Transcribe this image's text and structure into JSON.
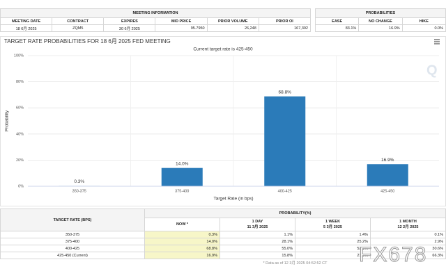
{
  "meeting_info": {
    "title": "MEETING INFORMATION",
    "columns": [
      "MEETING DATE",
      "CONTRACT",
      "EXPIRES",
      "MID PRICE",
      "PRIOR VOLUME",
      "PRIOR OI"
    ],
    "row": [
      "18 6月 2025",
      "ZQM5",
      "30 6月 2025",
      "95.7950",
      "26,248",
      "167,392"
    ]
  },
  "probabilities": {
    "title": "PROBABILITIES",
    "columns": [
      "EASE",
      "NO CHANGE",
      "HIKE"
    ],
    "row": [
      "83.1%",
      "16.9%",
      "0.0%"
    ]
  },
  "chart_data": {
    "type": "bar",
    "title": "TARGET RATE PROBABILITIES FOR 18 6月 2025 FED MEETING",
    "subtitle": "Current target rate is 425-450",
    "x_label": "Target Rate (in bps)",
    "y_label": "Probability",
    "categories": [
      "350-375",
      "375-400",
      "400-425",
      "425-450"
    ],
    "values": [
      0.3,
      14.0,
      68.8,
      16.9
    ],
    "value_labels": [
      "0.3%",
      "14.0%",
      "68.8%",
      "16.9%"
    ],
    "color": "#2b7bb9",
    "ylim": [
      0,
      100
    ],
    "yticks": [
      {
        "value": 0,
        "label": "0%"
      },
      {
        "value": 20,
        "label": "20%"
      },
      {
        "value": 40,
        "label": "40%"
      },
      {
        "value": 60,
        "label": "60%"
      },
      {
        "value": 80,
        "label": "80%"
      },
      {
        "value": 100,
        "label": "100%"
      }
    ],
    "grid": true
  },
  "history_table": {
    "rate_header": "TARGET RATE (BPS)",
    "prob_header": "PROBABILITY(%)",
    "columns": [
      {
        "label": "NOW *"
      },
      {
        "label": "1 DAY",
        "date": "11 3月 2025"
      },
      {
        "label": "1 WEEK",
        "date": "5 3月 2025"
      },
      {
        "label": "1 MONTH",
        "date": "12 2月 2025"
      }
    ],
    "rows": [
      [
        "350-375",
        "0.3%",
        "1.1%",
        "1.4%",
        "0.1%"
      ],
      [
        "375-400",
        "14.0%",
        "28.1%",
        "25.2%",
        "2.9%"
      ],
      [
        "400-425",
        "68.8%",
        "55.0%",
        "52.1%",
        "30.6%"
      ],
      [
        "425-450 (Current)",
        "16.9%",
        "15.8%",
        "21.3%",
        "66.3%"
      ]
    ],
    "footnote": "* Data as of 12 3月 2025 04:52:52 CT"
  },
  "watermark": "FX678"
}
